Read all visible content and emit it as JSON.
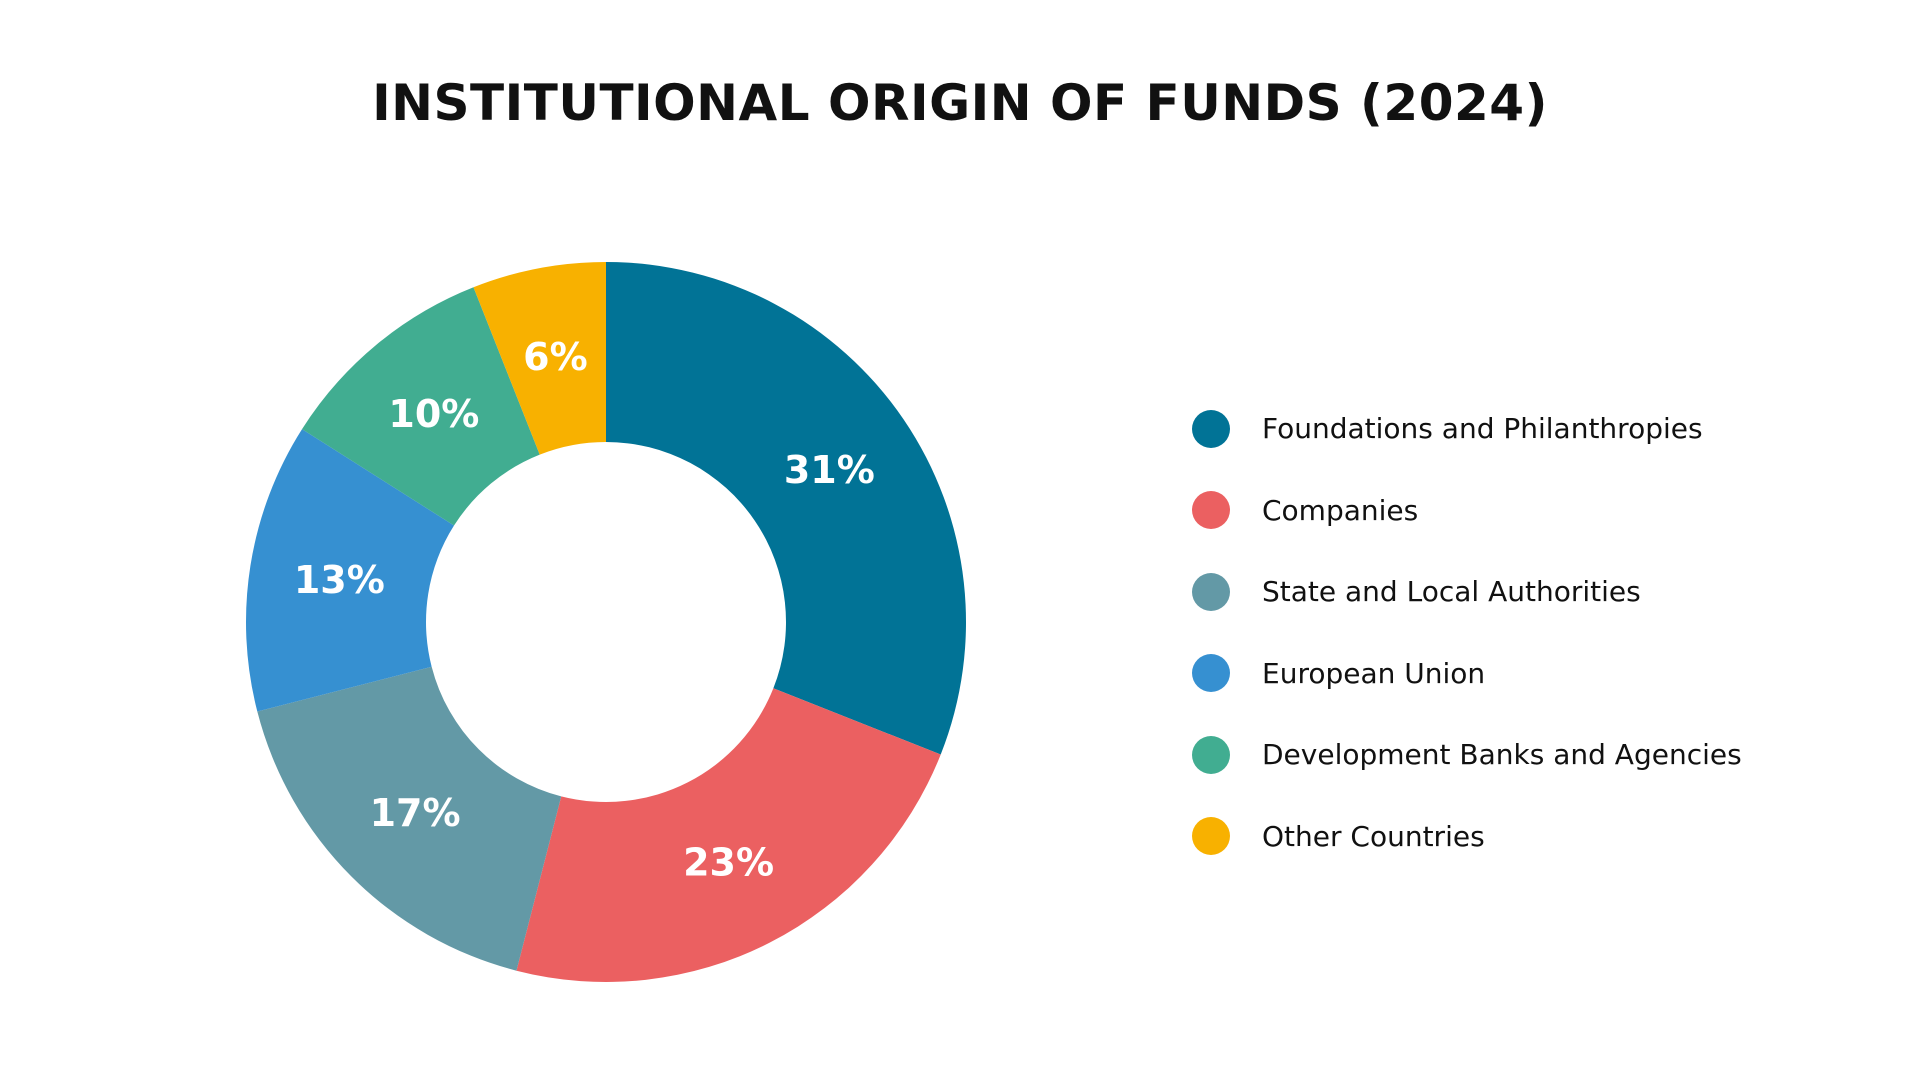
{
  "chart_data": {
    "type": "pie",
    "variant": "donut",
    "title": "INSTITUTIONAL ORIGIN OF FUNDS (2024)",
    "categories": [
      "Foundations and Philanthropies",
      "Companies",
      "State and Local Authorities",
      "European Union",
      "Development Banks and Agencies",
      "Other Countries"
    ],
    "values": [
      31,
      23,
      17,
      13,
      10,
      6
    ],
    "value_labels": [
      "31%",
      "23%",
      "17%",
      "13%",
      "10%",
      "6%"
    ],
    "unit": "%",
    "colors": [
      "#017396",
      "#EB6061",
      "#6399A6",
      "#3690D1",
      "#41AD91",
      "#F8B100"
    ],
    "legend_position": "right",
    "start_angle": "12 o'clock",
    "direction": "clockwise"
  }
}
